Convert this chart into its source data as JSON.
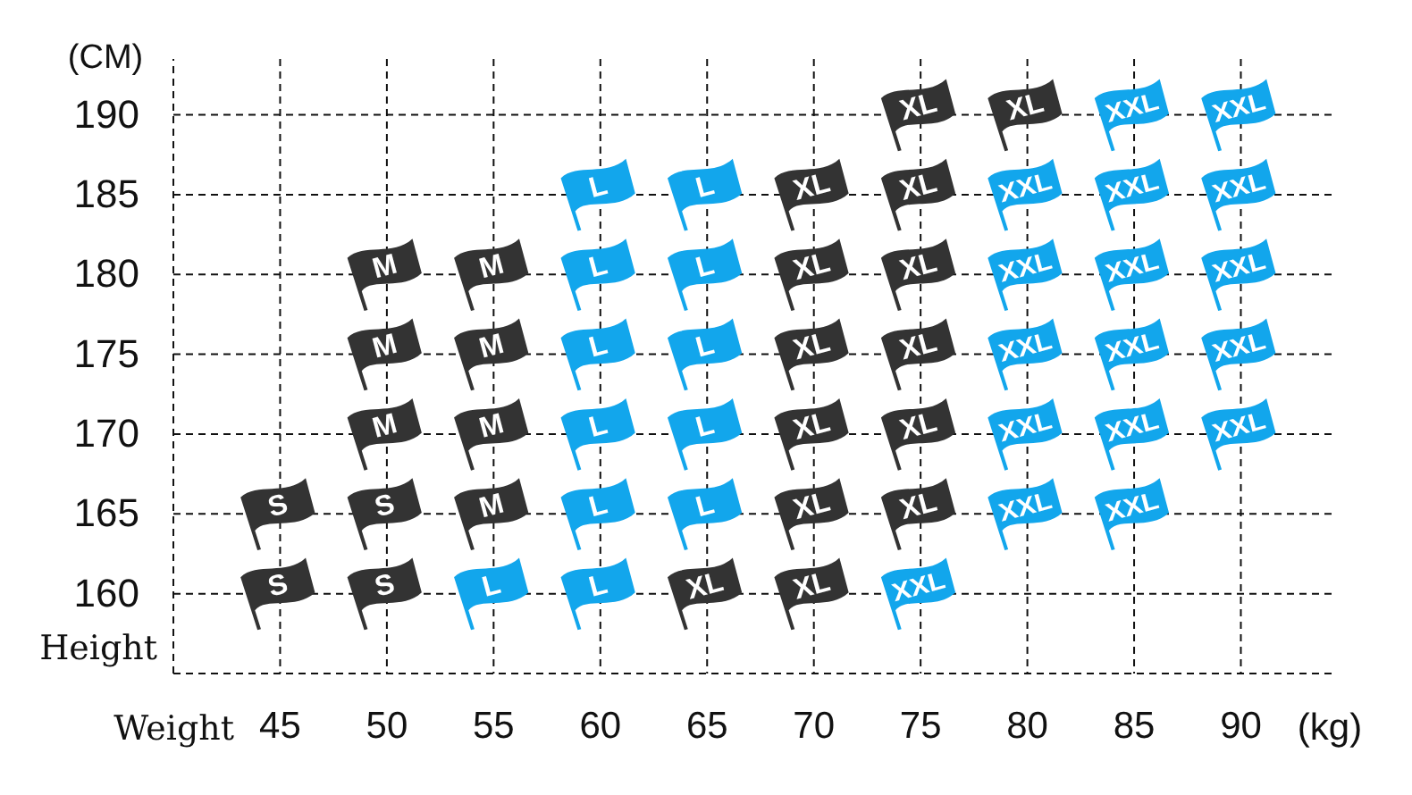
{
  "chart_data": {
    "type": "scatter",
    "xlabel": "Weight",
    "ylabel": "Height",
    "annotations": [
      "(CM)",
      "(kg)"
    ],
    "xlim": [
      40,
      94.5
    ],
    "ylim": [
      155,
      193.5
    ],
    "xticks": [
      45,
      50,
      55,
      60,
      65,
      70,
      75,
      80,
      85,
      90
    ],
    "yticks": [
      160,
      165,
      170,
      175,
      180,
      185,
      190
    ],
    "grid": true,
    "series": [
      {
        "name": "S",
        "color": "#333333",
        "x": [
          45,
          45,
          50,
          50
        ],
        "values": [
          165,
          160,
          165,
          160
        ]
      },
      {
        "name": "M",
        "color": "#333333",
        "x": [
          50,
          50,
          50,
          55,
          55,
          55,
          55
        ],
        "values": [
          180,
          175,
          170,
          180,
          175,
          170,
          165
        ]
      },
      {
        "name": "L",
        "color": "#12a6ec",
        "x": [
          55,
          60,
          60,
          60,
          60,
          60,
          60,
          65,
          65,
          65,
          65,
          65
        ],
        "values": [
          160,
          185,
          180,
          175,
          170,
          165,
          160,
          185,
          180,
          175,
          170,
          165
        ]
      },
      {
        "name": "XL",
        "color": "#333333",
        "x": [
          65,
          70,
          70,
          70,
          70,
          70,
          70,
          75,
          75,
          75,
          75,
          75,
          75,
          80
        ],
        "values": [
          160,
          185,
          180,
          175,
          170,
          165,
          160,
          190,
          185,
          180,
          175,
          170,
          165,
          190
        ]
      },
      {
        "name": "XXL",
        "color": "#12a6ec",
        "x": [
          75,
          80,
          80,
          80,
          80,
          80,
          85,
          85,
          85,
          85,
          85,
          85,
          90,
          90,
          90,
          90,
          90
        ],
        "values": [
          160,
          185,
          180,
          175,
          170,
          165,
          190,
          185,
          180,
          175,
          170,
          165,
          190,
          185,
          180,
          175,
          170
        ]
      }
    ]
  }
}
